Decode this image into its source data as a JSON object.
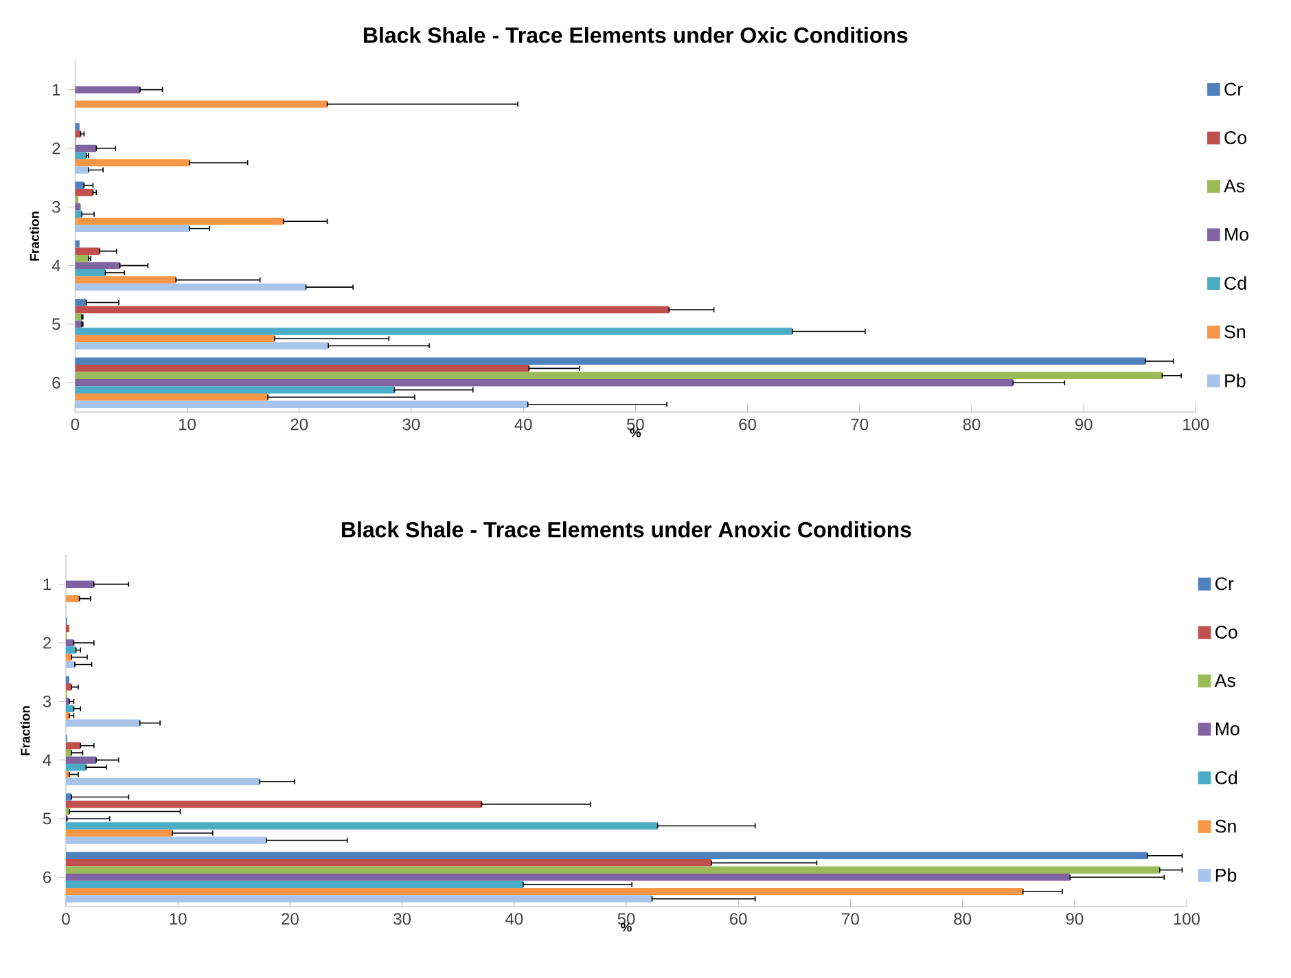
{
  "chart_data": [
    {
      "type": "bar",
      "orientation": "horizontal",
      "title": "Black Shale - Trace Elements under Oxic Conditions",
      "xlabel": "%",
      "ylabel": "Fraction",
      "categories": [
        "1",
        "2",
        "3",
        "4",
        "5",
        "6"
      ],
      "xlim": [
        0,
        100
      ],
      "xticks": [
        0,
        10,
        20,
        30,
        40,
        50,
        60,
        70,
        80,
        90,
        100
      ],
      "legend": "right",
      "series": [
        {
          "name": "Cr",
          "color": "#4f81bd",
          "values": [
            0,
            0.4,
            0.8,
            0.4,
            1,
            95.5
          ],
          "errors": [
            null,
            null,
            [
              0.8,
              1.6
            ],
            null,
            [
              1,
              3.9
            ],
            [
              95.5,
              98
            ]
          ]
        },
        {
          "name": "Co",
          "color": "#c0504d",
          "values": [
            0,
            0.5,
            1.6,
            2.2,
            53,
            40.5
          ],
          "errors": [
            null,
            [
              0.5,
              0.8
            ],
            [
              1.6,
              1.9
            ],
            [
              2.2,
              3.7
            ],
            [
              53,
              57
            ],
            [
              40.5,
              45
            ]
          ]
        },
        {
          "name": "As",
          "color": "#9bbb59",
          "values": [
            0,
            0.1,
            0.3,
            1.2,
            0.6,
            97
          ],
          "errors": [
            null,
            null,
            null,
            [
              1.2,
              1.4
            ],
            [
              0.6,
              0.7
            ],
            [
              97,
              98.7
            ]
          ]
        },
        {
          "name": "Mo",
          "color": "#8064a2",
          "values": [
            5.8,
            1.9,
            0.5,
            4,
            0.6,
            83.7
          ],
          "errors": [
            [
              5.8,
              7.8
            ],
            [
              1.9,
              3.6
            ],
            null,
            [
              4,
              6.5
            ],
            [
              0.6,
              0.7
            ],
            [
              83.7,
              88.3
            ]
          ]
        },
        {
          "name": "Cd",
          "color": "#4bacc6",
          "values": [
            0,
            1,
            0.6,
            2.7,
            64,
            28.5
          ],
          "errors": [
            null,
            [
              1,
              1.2
            ],
            [
              0.6,
              1.7
            ],
            [
              2.7,
              4.4
            ],
            [
              64,
              70.5
            ],
            [
              28.5,
              35.5
            ]
          ]
        },
        {
          "name": "Sn",
          "color": "#f79646",
          "values": [
            22.5,
            10.2,
            18.6,
            9,
            17.8,
            17.2
          ],
          "errors": [
            [
              22.5,
              39.5
            ],
            [
              10.2,
              15.4
            ],
            [
              18.6,
              22.5
            ],
            [
              9,
              16.5
            ],
            [
              17.8,
              28
            ],
            [
              17.2,
              30.3
            ]
          ]
        },
        {
          "name": "Pb",
          "color": "#a9c4eb",
          "values": [
            0,
            1.2,
            10.2,
            20.6,
            22.6,
            40.4
          ],
          "errors": [
            null,
            [
              1.2,
              2.5
            ],
            [
              10.2,
              12
            ],
            [
              20.6,
              24.8
            ],
            [
              22.6,
              31.6
            ],
            [
              40.4,
              52.8
            ]
          ]
        }
      ]
    },
    {
      "type": "bar",
      "orientation": "horizontal",
      "title": "Black Shale - Trace Elements under Anoxic Conditions",
      "xlabel": "%",
      "ylabel": "Fraction",
      "categories": [
        "1",
        "2",
        "3",
        "4",
        "5",
        "6"
      ],
      "xlim": [
        0,
        100
      ],
      "xticks": [
        0,
        10,
        20,
        30,
        40,
        50,
        60,
        70,
        80,
        90,
        100
      ],
      "legend": "right",
      "series": [
        {
          "name": "Cr",
          "color": "#4f81bd",
          "values": [
            0,
            0.1,
            0.3,
            0.1,
            0.5,
            96.5
          ],
          "errors": [
            null,
            null,
            null,
            null,
            [
              0.5,
              5.6
            ],
            [
              96.5,
              99.6
            ]
          ]
        },
        {
          "name": "Co",
          "color": "#c0504d",
          "values": [
            0,
            0.3,
            0.5,
            1.3,
            37.1,
            57.6
          ],
          "errors": [
            null,
            null,
            [
              0.5,
              1.1
            ],
            [
              1.3,
              2.5
            ],
            [
              37.1,
              46.8
            ],
            [
              57.6,
              67
            ]
          ]
        },
        {
          "name": "As",
          "color": "#9bbb59",
          "values": [
            0,
            0.1,
            0.1,
            0.5,
            0.3,
            97.6
          ],
          "errors": [
            null,
            null,
            null,
            [
              0.5,
              1.5
            ],
            [
              0.3,
              10.2
            ],
            [
              97.6,
              99.6
            ]
          ]
        },
        {
          "name": "Mo",
          "color": "#8064a2",
          "values": [
            2.5,
            0.7,
            0.3,
            2.7,
            0.1,
            89.6
          ],
          "errors": [
            [
              2.5,
              5.6
            ],
            [
              0.7,
              2.5
            ],
            [
              0.3,
              0.7
            ],
            [
              2.7,
              4.7
            ],
            [
              0.1,
              3.9
            ],
            [
              89.6,
              98
            ]
          ]
        },
        {
          "name": "Cd",
          "color": "#4bacc6",
          "values": [
            0,
            0.9,
            0.7,
            1.8,
            52.8,
            40.8
          ],
          "errors": [
            null,
            [
              0.9,
              1.3
            ],
            [
              0.7,
              1.3
            ],
            [
              1.8,
              3.6
            ],
            [
              52.8,
              61.5
            ],
            [
              40.8,
              50.5
            ]
          ]
        },
        {
          "name": "Sn",
          "color": "#f79646",
          "values": [
            1.2,
            0.5,
            0.3,
            0.3,
            9.5,
            85.4
          ],
          "errors": [
            [
              1.2,
              2.2
            ],
            [
              0.5,
              1.9
            ],
            [
              0.3,
              0.7
            ],
            [
              0.3,
              1.1
            ],
            [
              9.5,
              13.1
            ],
            [
              85.4,
              88.9
            ]
          ]
        },
        {
          "name": "Pb",
          "color": "#a9c4eb",
          "values": [
            0,
            0.8,
            6.6,
            17.3,
            17.9,
            52.3
          ],
          "errors": [
            null,
            [
              0.8,
              2.3
            ],
            [
              6.6,
              8.4
            ],
            [
              17.3,
              20.4
            ],
            [
              17.9,
              25.1
            ],
            [
              52.3,
              61.5
            ]
          ]
        }
      ]
    }
  ]
}
